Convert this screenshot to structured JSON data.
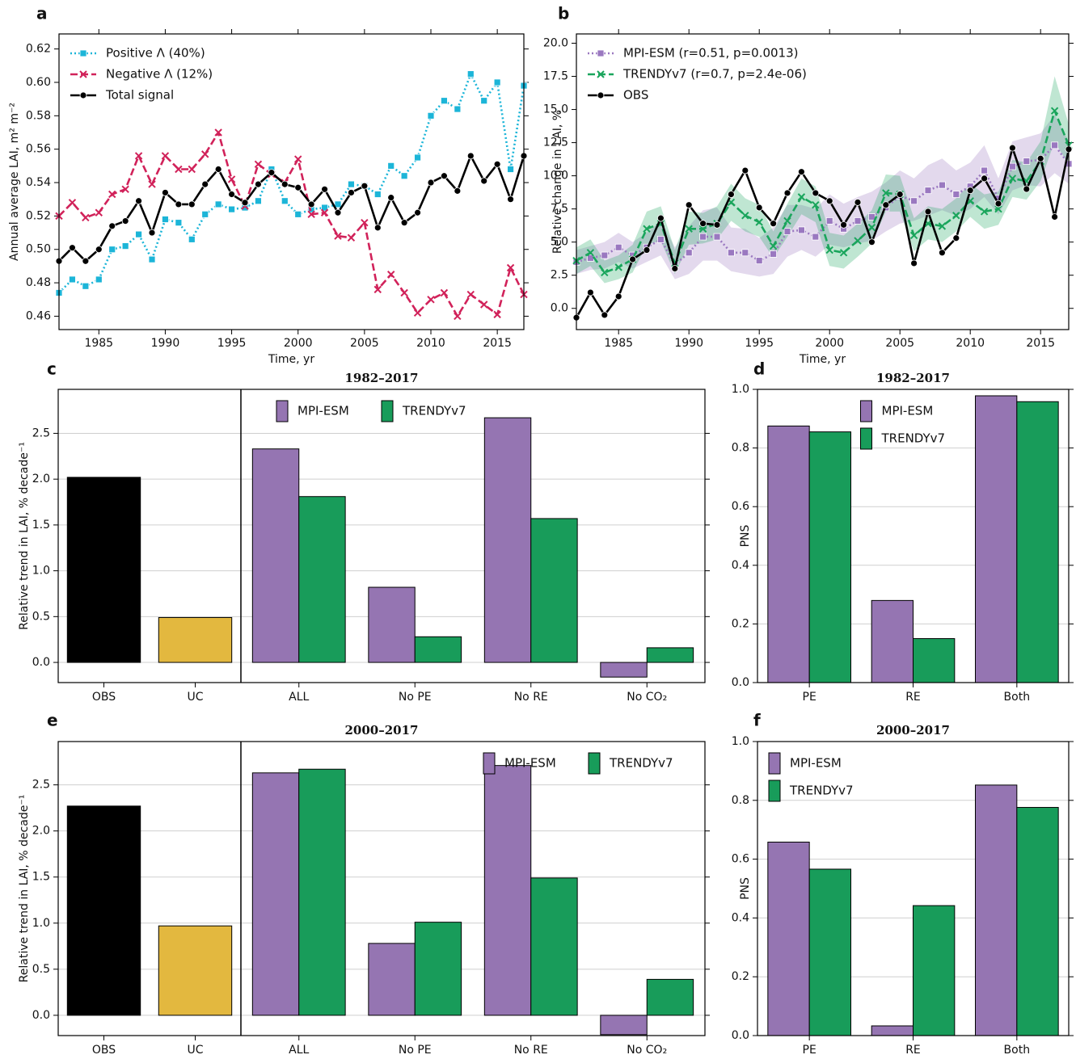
{
  "chart_data": [
    {
      "type": "line",
      "panel": "a",
      "xlabel": "Time, yr",
      "ylabel": "Annual average LAI, m² m⁻²",
      "legend": "upper left",
      "x": [
        1982,
        1983,
        1984,
        1985,
        1986,
        1987,
        1988,
        1989,
        1990,
        1991,
        1992,
        1993,
        1994,
        1995,
        1996,
        1997,
        1998,
        1999,
        2000,
        2001,
        2002,
        2003,
        2004,
        2005,
        2006,
        2007,
        2008,
        2009,
        2010,
        2011,
        2012,
        2013,
        2014,
        2015,
        2016,
        2017
      ],
      "xlim": [
        1982,
        2017
      ],
      "xticks": [
        1985,
        1990,
        1995,
        2000,
        2005,
        2010,
        2015
      ],
      "ylim": [
        0.452,
        0.629
      ],
      "yticks": [
        0.46,
        0.48,
        {
          "value": 0.5,
          "label": "0.50"
        },
        0.52,
        0.54,
        0.56,
        0.58,
        {
          "value": 0.6,
          "label": "0.60"
        },
        0.62
      ],
      "series": [
        {
          "name": "Positive Λ (40%)",
          "color": "#1cb5d8",
          "linestyle": "dotted",
          "marker": "square",
          "values": [
            0.474,
            0.482,
            0.478,
            0.482,
            0.5,
            0.502,
            0.509,
            0.494,
            0.518,
            0.516,
            0.506,
            0.521,
            0.527,
            0.524,
            0.525,
            0.529,
            0.548,
            0.529,
            0.521,
            0.524,
            0.525,
            0.527,
            0.539,
            0.538,
            0.533,
            0.55,
            0.544,
            0.555,
            0.58,
            0.589,
            0.584,
            0.605,
            0.589,
            0.6,
            0.548,
            0.598
          ]
        },
        {
          "name": "Negative Λ (12%)",
          "color": "#d1225a",
          "linestyle": "dashed",
          "marker": "x",
          "values": [
            0.52,
            0.528,
            0.519,
            0.522,
            0.533,
            0.536,
            0.556,
            0.539,
            0.556,
            0.548,
            0.548,
            0.557,
            0.57,
            0.542,
            0.526,
            0.551,
            0.545,
            0.54,
            0.554,
            0.521,
            0.522,
            0.508,
            0.507,
            0.516,
            0.476,
            0.485,
            0.474,
            0.462,
            0.47,
            0.474,
            0.46,
            0.473,
            0.467,
            0.461,
            0.489,
            0.473
          ]
        },
        {
          "name": "Total signal",
          "color": "#000000",
          "linestyle": "solid",
          "marker": "circle",
          "values": [
            0.493,
            0.501,
            0.493,
            0.5,
            0.514,
            0.517,
            0.529,
            0.51,
            0.534,
            0.527,
            0.527,
            0.539,
            0.548,
            0.533,
            0.528,
            0.539,
            0.546,
            0.539,
            0.537,
            0.527,
            0.536,
            0.522,
            0.534,
            0.538,
            0.513,
            0.531,
            0.516,
            0.522,
            0.54,
            0.544,
            0.535,
            0.556,
            0.541,
            0.551,
            0.53,
            0.556
          ]
        }
      ]
    },
    {
      "type": "line",
      "panel": "b",
      "xlabel": "Time, yr",
      "ylabel": "Relative change in LAI, %",
      "legend": "upper left",
      "x": [
        1982,
        1983,
        1984,
        1985,
        1986,
        1987,
        1988,
        1989,
        1990,
        1991,
        1992,
        1993,
        1994,
        1995,
        1996,
        1997,
        1998,
        1999,
        2000,
        2001,
        2002,
        2003,
        2004,
        2005,
        2006,
        2007,
        2008,
        2009,
        2010,
        2011,
        2012,
        2013,
        2014,
        2015,
        2016,
        2017
      ],
      "xlim": [
        1982,
        2017
      ],
      "xticks": [
        1985,
        1990,
        1995,
        2000,
        2005,
        2010,
        2015
      ],
      "ylim": [
        -1.6,
        20.7
      ],
      "yticks": [
        {
          "value": 0,
          "label": "0.0"
        },
        2.5,
        {
          "value": 5,
          "label": "5.0"
        },
        7.5,
        {
          "value": 10,
          "label": "10.0"
        },
        12.5,
        {
          "value": 15,
          "label": "15.0"
        },
        17.5,
        {
          "value": 20,
          "label": "20.0"
        }
      ],
      "series": [
        {
          "name": "MPI-ESM (r=0.51, p=0.0013)",
          "color": "#9a78c0",
          "linestyle": "dotted",
          "marker": "square",
          "values": [
            3.5,
            3.8,
            4.0,
            4.6,
            4.0,
            4.6,
            5.2,
            3.3,
            4.2,
            5.4,
            5.4,
            4.2,
            4.2,
            3.6,
            4.1,
            5.8,
            5.9,
            5.4,
            6.6,
            6.0,
            6.6,
            6.9,
            7.6,
            8.5,
            8.1,
            8.9,
            9.3,
            8.6,
            9.2,
            10.4,
            8.3,
            10.7,
            11.1,
            11.2,
            12.3,
            10.9
          ],
          "band_lower": [
            2.6,
            2.9,
            3.0,
            3.5,
            3.0,
            3.5,
            4.0,
            2.2,
            2.6,
            3.6,
            3.6,
            2.8,
            2.6,
            2.4,
            2.6,
            3.9,
            4.4,
            3.9,
            4.8,
            4.6,
            4.9,
            5.1,
            5.8,
            6.4,
            6.6,
            7.0,
            7.4,
            7.0,
            7.5,
            8.4,
            7.1,
            8.9,
            9.3,
            9.2,
            10.2,
            9.4
          ],
          "band_upper": [
            4.4,
            4.7,
            5.0,
            5.7,
            5.0,
            5.7,
            6.6,
            4.6,
            6.2,
            7.4,
            7.6,
            6.1,
            6.0,
            5.3,
            6.1,
            7.8,
            7.8,
            7.5,
            8.6,
            7.9,
            8.4,
            8.8,
            9.5,
            10.4,
            9.8,
            10.8,
            11.3,
            10.4,
            11.0,
            12.3,
            9.8,
            12.6,
            12.9,
            13.2,
            14.6,
            12.6
          ]
        },
        {
          "name": "TRENDYv7 (r=0.7, p=2.4e-06)",
          "color": "#1aa55c",
          "linestyle": "dashed",
          "marker": "x",
          "values": [
            3.6,
            4.2,
            2.7,
            3.1,
            3.7,
            6.0,
            6.4,
            3.4,
            6.0,
            6.0,
            6.4,
            8.0,
            7.0,
            6.5,
            4.7,
            6.6,
            8.4,
            7.8,
            4.4,
            4.2,
            5.1,
            6.1,
            8.7,
            8.6,
            5.5,
            6.4,
            6.2,
            7.0,
            8.1,
            7.3,
            7.5,
            9.8,
            9.6,
            11.1,
            14.9,
            12.3
          ],
          "band_lower": [
            2.6,
            3.2,
            1.9,
            2.2,
            2.7,
            4.8,
            5.1,
            2.6,
            4.8,
            4.9,
            5.2,
            6.6,
            5.8,
            5.4,
            3.8,
            5.4,
            7.1,
            6.5,
            3.2,
            3.0,
            3.9,
            4.9,
            7.3,
            7.3,
            4.3,
            5.2,
            5.0,
            5.8,
            6.9,
            6.0,
            6.3,
            8.4,
            8.2,
            9.6,
            12.6,
            10.8
          ],
          "band_upper": [
            4.6,
            5.2,
            3.6,
            4.0,
            4.8,
            7.3,
            7.7,
            4.4,
            7.3,
            7.2,
            7.7,
            9.4,
            8.3,
            7.8,
            5.8,
            7.9,
            9.8,
            9.2,
            5.7,
            5.5,
            6.4,
            7.4,
            10.1,
            10.0,
            6.8,
            7.7,
            7.5,
            8.3,
            9.4,
            8.6,
            8.8,
            11.2,
            11.0,
            12.6,
            17.5,
            13.9
          ]
        },
        {
          "name": "OBS",
          "color": "#000000",
          "linestyle": "solid",
          "marker": "circle",
          "values": [
            -0.7,
            1.2,
            -0.5,
            0.9,
            3.7,
            4.4,
            6.8,
            3.0,
            7.8,
            6.4,
            6.3,
            8.6,
            10.4,
            7.6,
            6.4,
            8.7,
            10.3,
            8.7,
            8.1,
            6.3,
            8.0,
            5.0,
            7.8,
            8.6,
            3.4,
            7.3,
            4.2,
            5.3,
            8.9,
            9.8,
            7.9,
            12.1,
            9.0,
            11.3,
            6.9,
            12.0
          ]
        }
      ]
    },
    {
      "type": "bar",
      "panel": "c",
      "title": "1982–2017",
      "ylabel": "Relative trend in LAI, % decade⁻¹",
      "legend": "upper center",
      "legend_columns": 2,
      "grid": true,
      "categories": [
        "OBS",
        "UC",
        "ALL",
        "No PE",
        "No RE",
        "No CO₂"
      ],
      "values": [
        2.02,
        0.49,
        null,
        null,
        null,
        null
      ],
      "colors": [
        "#000000",
        "#e3b83f",
        null,
        null,
        null,
        null
      ],
      "ylim": [
        -0.22,
        2.98
      ],
      "yticks": [
        {
          "value": 0,
          "label": "0.0"
        },
        0.5,
        {
          "value": 1,
          "label": "1.0"
        },
        1.5,
        {
          "value": 2,
          "label": "2.0"
        },
        2.5
      ],
      "series": [
        {
          "name": "MPI-ESM",
          "color": "#9575b2",
          "values": [
            null,
            null,
            2.33,
            0.82,
            2.67,
            -0.16
          ]
        },
        {
          "name": "TRENDYv7",
          "color": "#189c5a",
          "values": [
            null,
            null,
            1.81,
            0.28,
            1.57,
            0.16
          ]
        }
      ]
    },
    {
      "type": "bar",
      "panel": "d",
      "title": "1982–2017",
      "ylabel": "PNS",
      "legend": "upper center",
      "grid": true,
      "categories": [
        "PE",
        "RE",
        "Both"
      ],
      "ylim": [
        0,
        1
      ],
      "yticks": [
        {
          "value": 0,
          "label": "0.0"
        },
        0.2,
        0.4,
        0.6,
        0.8,
        {
          "value": 1,
          "label": "1.0"
        }
      ],
      "series": [
        {
          "name": "MPI-ESM",
          "color": "#9575b2",
          "values": [
            0.875,
            0.28,
            0.978
          ]
        },
        {
          "name": "TRENDYv7",
          "color": "#189c5a",
          "values": [
            0.855,
            0.15,
            0.958
          ]
        }
      ]
    },
    {
      "type": "bar",
      "panel": "e",
      "title": "2000–2017",
      "ylabel": "Relative trend in LAI, % decade⁻¹",
      "legend": "upper right",
      "legend_columns": 2,
      "grid": true,
      "categories": [
        "OBS",
        "UC",
        "ALL",
        "No PE",
        "No RE",
        "No CO₂"
      ],
      "values": [
        2.27,
        0.97,
        null,
        null,
        null,
        null
      ],
      "colors": [
        "#000000",
        "#e3b83f",
        null,
        null,
        null,
        null
      ],
      "ylim": [
        -0.22,
        2.97
      ],
      "yticks": [
        {
          "value": 0,
          "label": "0.0"
        },
        0.5,
        {
          "value": 1,
          "label": "1.0"
        },
        1.5,
        {
          "value": 2,
          "label": "2.0"
        },
        2.5
      ],
      "series": [
        {
          "name": "MPI-ESM",
          "color": "#9575b2",
          "values": [
            null,
            null,
            2.63,
            0.78,
            2.71,
            -0.21
          ]
        },
        {
          "name": "TRENDYv7",
          "color": "#189c5a",
          "values": [
            null,
            null,
            2.67,
            1.01,
            1.49,
            0.39
          ]
        }
      ]
    },
    {
      "type": "bar",
      "panel": "f",
      "title": "2000–2017",
      "ylabel": "PNS",
      "legend": "upper left",
      "grid": true,
      "categories": [
        "PE",
        "RE",
        "Both"
      ],
      "ylim": [
        0,
        1
      ],
      "yticks": [
        {
          "value": 0,
          "label": "0.0"
        },
        0.2,
        0.4,
        0.6,
        0.8,
        {
          "value": 1,
          "label": "1.0"
        }
      ],
      "series": [
        {
          "name": "MPI-ESM",
          "color": "#9575b2",
          "values": [
            0.658,
            0.033,
            0.852
          ]
        },
        {
          "name": "TRENDYv7",
          "color": "#189c5a",
          "values": [
            0.566,
            0.442,
            0.776
          ]
        }
      ]
    }
  ]
}
